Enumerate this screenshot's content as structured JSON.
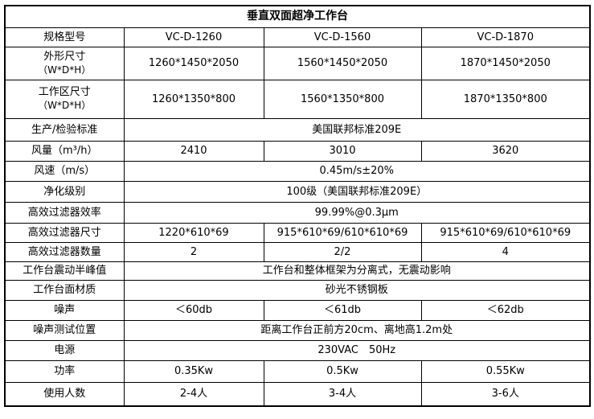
{
  "title": "垂直双面超净工作台",
  "rows": [
    {
      "label": "规格型号",
      "values": [
        "VC-D-1260",
        "VC-D-1560",
        "VC-D-1870"
      ]
    },
    {
      "label": "外形尺寸",
      "sublabel": "（W*D*H）",
      "values": [
        "1260*1450*2050",
        "1560*1450*2050",
        "1870*1450*2050"
      ]
    },
    {
      "label": "工作区尺寸",
      "sublabel": "（W*D*H）",
      "values": [
        "1260*1350*800",
        "1560*1350*800",
        "1870*1350*800"
      ]
    },
    {
      "label": "生产/检验标准",
      "merged": "美国联邦标准209E"
    },
    {
      "label": "风量（m³/h）",
      "values": [
        "2410",
        "3010",
        "3620"
      ]
    },
    {
      "label": "风速（m/s）",
      "merged": "0.45m/s±20%"
    },
    {
      "label": "净化级别",
      "merged": "100级（美国联邦标准209E）"
    },
    {
      "label": "高效过滤器效率",
      "merged": "99.99%@0.3μm"
    },
    {
      "label": "高效过滤器尺寸",
      "values": [
        "1220*610*69",
        "915*610*69/610*610*69",
        "915*610*69/610*610*69"
      ]
    },
    {
      "label": "高效过滤器数量",
      "values": [
        "2",
        "2/2",
        "4"
      ]
    },
    {
      "label": "工作台震动半峰值",
      "merged": "工作台和整体框架为分离式，无震动影响"
    },
    {
      "label": "工作台面材质",
      "merged": "砂光不锈钢板"
    },
    {
      "label": "噪声",
      "values": [
        "＜60db",
        "＜61db",
        "＜62db"
      ]
    },
    {
      "label": "噪声测试位置",
      "merged": "距离工作台正前方20cm、离地高1.2m处"
    },
    {
      "label": "电源",
      "merged": "230VAC　50Hz"
    },
    {
      "label": "功率",
      "values": [
        "0.35Kw",
        "0.5Kw",
        "0.55Kw"
      ]
    },
    {
      "label": "使用人数",
      "values": [
        "2-4人",
        "3-4人",
        "3-6人"
      ]
    }
  ]
}
